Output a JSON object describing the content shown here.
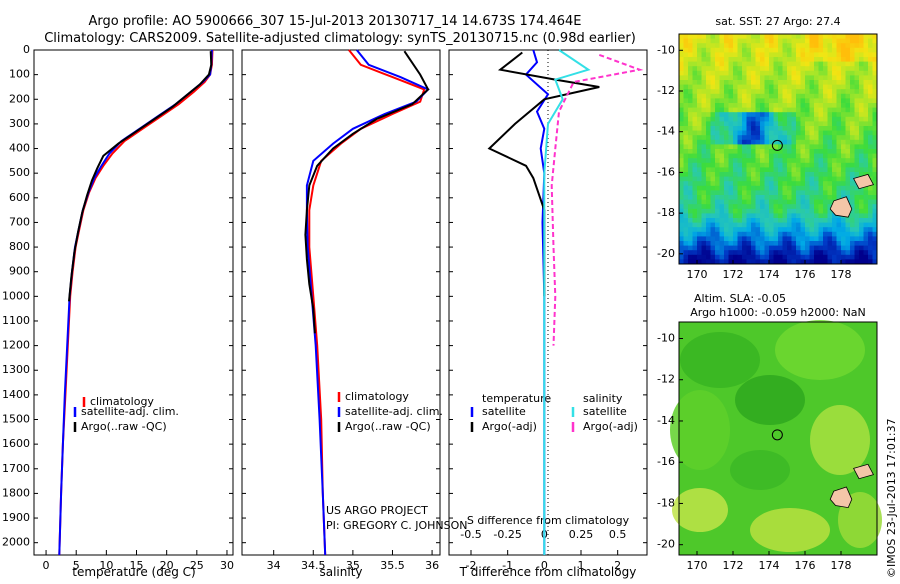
{
  "header": {
    "line1": "Argo profile: AO 5900666_307 15-Jul-2013 20130717_14 14.673S 174.464E",
    "line2": "Climatology: CARS2009. Satellite-adjusted climatology: synTS_20130715.nc (0.98d earlier)"
  },
  "colors": {
    "climatology": "#ff0000",
    "satellite": "#0000ff",
    "argo": "#000000",
    "salinity_satellite": "#33e0e6",
    "salinity_argo": "#ff33cc"
  },
  "chart_data": [
    {
      "type": "line",
      "xlabel": "temperature (deg C)",
      "ylabel": "",
      "xlim": [
        -2,
        31
      ],
      "ylim": [
        2050,
        0
      ],
      "y_reversed": true,
      "xticks": [
        "0",
        "5",
        "10",
        "15",
        "20",
        "25",
        "30"
      ],
      "yticks": [
        "0",
        "100",
        "200",
        "300",
        "400",
        "500",
        "600",
        "700",
        "800",
        "900",
        "1000",
        "1100",
        "1200",
        "1300",
        "1400",
        "1500",
        "1600",
        "1700",
        "1800",
        "1900",
        "2000"
      ],
      "legend": [
        "climatology",
        "satellite-adj. clim.",
        "Argo(..raw -QC)"
      ],
      "legend_position": "bottom-right",
      "series": [
        {
          "name": "climatology",
          "color": "#ff0000",
          "points": [
            [
              27.6,
              0
            ],
            [
              27.5,
              60
            ],
            [
              27.2,
              100
            ],
            [
              26.3,
              130
            ],
            [
              24.5,
              170
            ],
            [
              22,
              220
            ],
            [
              19,
              270
            ],
            [
              16,
              320
            ],
            [
              13,
              370
            ],
            [
              11,
              420
            ],
            [
              9.5,
              470
            ],
            [
              8.2,
              520
            ],
            [
              7.1,
              580
            ],
            [
              6.2,
              650
            ],
            [
              5.5,
              730
            ],
            [
              4.9,
              800
            ],
            [
              4.4,
              900
            ],
            [
              4,
              1000
            ],
            [
              3.6,
              1200
            ],
            [
              3.2,
              1400
            ],
            [
              2.8,
              1600
            ],
            [
              2.5,
              1800
            ],
            [
              2.2,
              2050
            ]
          ]
        },
        {
          "name": "satellite-adj. clim.",
          "color": "#0000ff",
          "points": [
            [
              27.5,
              0
            ],
            [
              27.4,
              60
            ],
            [
              27.2,
              100
            ],
            [
              26,
              130
            ],
            [
              24,
              170
            ],
            [
              21.5,
              220
            ],
            [
              18.5,
              270
            ],
            [
              15.5,
              320
            ],
            [
              12.5,
              370
            ],
            [
              10.5,
              420
            ],
            [
              9.2,
              470
            ],
            [
              8,
              520
            ],
            [
              7,
              580
            ],
            [
              6.1,
              650
            ],
            [
              5.4,
              730
            ],
            [
              4.8,
              800
            ],
            [
              4.3,
              900
            ],
            [
              3.9,
              1000
            ],
            [
              3.5,
              1200
            ],
            [
              3.1,
              1400
            ],
            [
              2.8,
              1600
            ],
            [
              2.5,
              1800
            ],
            [
              2.2,
              2050
            ]
          ]
        },
        {
          "name": "Argo(..raw -QC)",
          "color": "#000000",
          "points": [
            [
              27.3,
              5
            ],
            [
              27.4,
              60
            ],
            [
              27,
              100
            ],
            [
              25.5,
              140
            ],
            [
              23.5,
              180
            ],
            [
              21,
              230
            ],
            [
              18,
              280
            ],
            [
              15,
              330
            ],
            [
              12,
              380
            ],
            [
              9.5,
              430
            ],
            [
              8.5,
              480
            ],
            [
              7.6,
              530
            ],
            [
              6.8,
              590
            ],
            [
              6,
              660
            ],
            [
              5.3,
              740
            ],
            [
              4.7,
              820
            ],
            [
              4.2,
              920
            ],
            [
              3.8,
              1020
            ]
          ]
        }
      ]
    },
    {
      "type": "line",
      "xlabel": "salinity",
      "xlim": [
        33.6,
        36.1
      ],
      "ylim": [
        2050,
        0
      ],
      "y_reversed": true,
      "xticks": [
        "34",
        "34.5",
        "35",
        "35.5",
        "36"
      ],
      "legend": [
        "climatology",
        "satellite-adj. clim.",
        "Argo(..raw -QC)"
      ],
      "legend_position": "bottom-right",
      "annotations": [
        "US ARGO PROJECT",
        "PI: GREGORY C. JOHNSON"
      ],
      "series": [
        {
          "name": "climatology",
          "color": "#ff0000",
          "points": [
            [
              34.95,
              0
            ],
            [
              35.1,
              60
            ],
            [
              35.5,
              110
            ],
            [
              35.9,
              160
            ],
            [
              35.85,
              210
            ],
            [
              35.5,
              260
            ],
            [
              35.1,
              320
            ],
            [
              34.85,
              380
            ],
            [
              34.6,
              450
            ],
            [
              34.5,
              550
            ],
            [
              34.45,
              650
            ],
            [
              34.45,
              800
            ],
            [
              34.5,
              1000
            ],
            [
              34.55,
              1200
            ],
            [
              34.6,
              1500
            ],
            [
              34.62,
              1800
            ],
            [
              34.65,
              2050
            ]
          ]
        },
        {
          "name": "satellite-adj. clim.",
          "color": "#0000ff",
          "points": [
            [
              35.05,
              0
            ],
            [
              35.2,
              60
            ],
            [
              35.6,
              110
            ],
            [
              35.95,
              160
            ],
            [
              35.8,
              210
            ],
            [
              35.4,
              260
            ],
            [
              35,
              320
            ],
            [
              34.75,
              380
            ],
            [
              34.5,
              450
            ],
            [
              34.42,
              550
            ],
            [
              34.42,
              650
            ],
            [
              34.43,
              800
            ],
            [
              34.48,
              1000
            ],
            [
              34.53,
              1200
            ],
            [
              34.58,
              1500
            ],
            [
              34.62,
              1800
            ],
            [
              34.65,
              2050
            ]
          ]
        },
        {
          "name": "Argo(..raw -QC)",
          "color": "#000000",
          "points": [
            [
              35.65,
              5
            ],
            [
              35.85,
              100
            ],
            [
              35.95,
              160
            ],
            [
              35.75,
              220
            ],
            [
              35.3,
              280
            ],
            [
              35,
              340
            ],
            [
              34.75,
              400
            ],
            [
              34.55,
              470
            ],
            [
              34.45,
              550
            ],
            [
              34.42,
              650
            ],
            [
              34.4,
              750
            ],
            [
              34.42,
              850
            ],
            [
              34.45,
              950
            ],
            [
              34.5,
              1050
            ],
            [
              34.52,
              1150
            ]
          ]
        }
      ]
    },
    {
      "type": "line",
      "xlabel_top": "S difference from climatology",
      "xlabel": "T difference from climatology",
      "xlim": [
        -2.6,
        2.8
      ],
      "ylim": [
        2050,
        0
      ],
      "y_reversed": true,
      "xticks": [
        "-2",
        "-1",
        "0",
        "1",
        "2"
      ],
      "xticks_top": [
        "-0.5",
        "-0.25",
        "0",
        "0.25",
        "0.5"
      ],
      "legend": [
        "temperature",
        "satellite",
        "Argo(-adj)",
        "salinity",
        "satellite",
        "Argo(-adj)"
      ],
      "legend_position": "bottom",
      "series": [
        {
          "name": "temperature satellite",
          "color": "#0000ff",
          "points": [
            [
              -0.3,
              0
            ],
            [
              -0.2,
              50
            ],
            [
              -0.5,
              100
            ],
            [
              0.1,
              180
            ],
            [
              -0.2,
              250
            ],
            [
              0,
              320
            ],
            [
              -0.1,
              400
            ],
            [
              0,
              500
            ],
            [
              -0.05,
              700
            ],
            [
              0,
              1000
            ],
            [
              0,
              1500
            ],
            [
              0,
              2050
            ]
          ]
        },
        {
          "name": "temperature Argo(-adj)",
          "color": "#000000",
          "points": [
            [
              -0.6,
              10
            ],
            [
              -1.2,
              80
            ],
            [
              0.3,
              120
            ],
            [
              1.5,
              150
            ],
            [
              0,
              200
            ],
            [
              -0.8,
              300
            ],
            [
              -1.5,
              400
            ],
            [
              -0.5,
              470
            ],
            [
              -0.3,
              520
            ],
            [
              0,
              650
            ],
            [
              0,
              800
            ],
            [
              0,
              1000
            ]
          ]
        },
        {
          "name": "salinity satellite",
          "color": "#33e0e6",
          "points": [
            [
              0.4,
              0
            ],
            [
              1.2,
              80
            ],
            [
              0.3,
              120
            ],
            [
              0.5,
              200
            ],
            [
              0.1,
              300
            ],
            [
              0,
              500
            ],
            [
              0,
              1000
            ],
            [
              0,
              2050
            ]
          ]
        },
        {
          "name": "salinity Argo(-adj)",
          "color": "#ff33cc",
          "points": [
            [
              1.5,
              20
            ],
            [
              2.6,
              80
            ],
            [
              0.8,
              130
            ],
            [
              0.4,
              250
            ],
            [
              0.3,
              400
            ],
            [
              0.2,
              550
            ],
            [
              0.25,
              800
            ],
            [
              0.3,
              1000
            ],
            [
              0.25,
              1200
            ]
          ]
        }
      ]
    },
    {
      "type": "heatmap",
      "title": "sat. SST: 27 Argo: 27.4",
      "xticks": [
        "170",
        "172",
        "174",
        "176",
        "178"
      ],
      "yticks": [
        "-10",
        "-12",
        "-14",
        "-16",
        "-18",
        "-20"
      ],
      "xlim": [
        169,
        180
      ],
      "ylim": [
        -20.5,
        -9.2
      ],
      "marker": {
        "lon": 174.464,
        "lat": -14.673
      }
    },
    {
      "type": "heatmap",
      "title_line1": "Altim. SLA: -0.05",
      "title_line2": "Argo h1000: -0.059 h2000: NaN",
      "xticks": [
        "170",
        "172",
        "174",
        "176",
        "178"
      ],
      "yticks": [
        "-10",
        "-12",
        "-14",
        "-16",
        "-18",
        "-20"
      ],
      "xlim": [
        169,
        180
      ],
      "ylim": [
        -20.5,
        -9.2
      ],
      "marker": {
        "lon": 174.464,
        "lat": -14.673
      }
    }
  ],
  "side_label": "©IMOS 23-Jul-2013 17:01:37"
}
